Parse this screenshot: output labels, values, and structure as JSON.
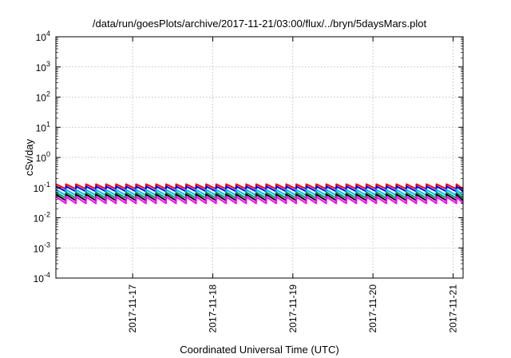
{
  "chart_data": {
    "type": "line",
    "title": "/data/run/goesPlots/archive/2017-11-21/03:00/flux/../bryn/5daysMars.plot",
    "xlabel": "Coordinated Universal Time (UTC)",
    "ylabel": "cSv/day",
    "yscale": "log",
    "ylim": [
      0.0001,
      10000
    ],
    "y_ticks": [
      {
        "mantissa": "10",
        "exponent": "-4"
      },
      {
        "mantissa": "10",
        "exponent": "-3"
      },
      {
        "mantissa": "10",
        "exponent": "-2"
      },
      {
        "mantissa": "10",
        "exponent": "-1"
      },
      {
        "mantissa": "10",
        "exponent": "0"
      },
      {
        "mantissa": "10",
        "exponent": "1"
      },
      {
        "mantissa": "10",
        "exponent": "2"
      },
      {
        "mantissa": "10",
        "exponent": "3"
      },
      {
        "mantissa": "10",
        "exponent": "4"
      }
    ],
    "xlim": [
      "2017-11-16T01:00",
      "2017-11-21T03:00"
    ],
    "x_ticks": [
      "2017-11-17",
      "2017-11-18",
      "2017-11-19",
      "2017-11-20",
      "2017-11-21"
    ],
    "grid": true,
    "pattern": "sawtooth: step up then decay, period about 3 hours",
    "series": [
      {
        "color": "#ff0000",
        "start": 0.13,
        "end": 0.09
      },
      {
        "color": "#0000ff",
        "start": 0.11,
        "end": 0.075
      },
      {
        "color": "#00bfff",
        "start": 0.085,
        "end": 0.055
      },
      {
        "color": "#00a060",
        "start": 0.07,
        "end": 0.045
      },
      {
        "color": "#000000",
        "start": 0.06,
        "end": 0.037
      },
      {
        "color": "#ff00ff",
        "start": 0.05,
        "end": 0.03
      }
    ]
  }
}
